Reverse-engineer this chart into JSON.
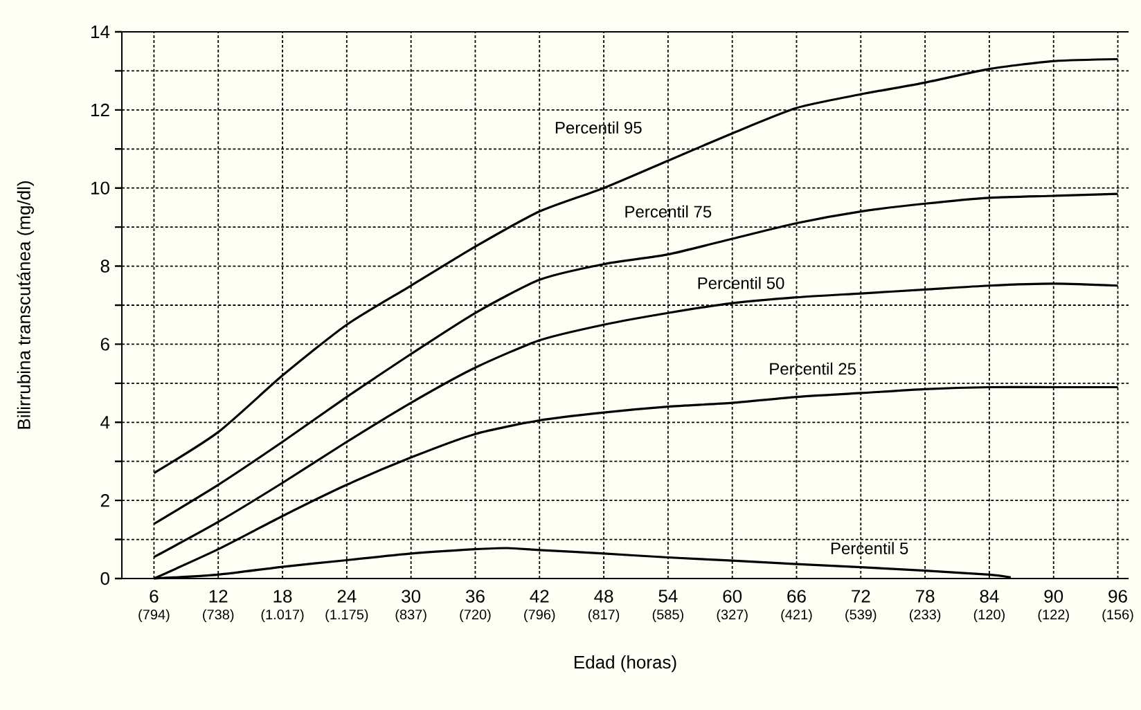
{
  "chart_data": {
    "type": "line",
    "xlabel": "Edad (horas)",
    "ylabel": "Bilirrubina transcutánea (mg/dl)",
    "x": [
      6,
      12,
      18,
      24,
      30,
      36,
      42,
      48,
      54,
      60,
      66,
      72,
      78,
      84,
      90,
      96
    ],
    "xlim": [
      3,
      97
    ],
    "ylim": [
      0,
      14
    ],
    "xticks": [
      6,
      12,
      18,
      24,
      30,
      36,
      42,
      48,
      54,
      60,
      66,
      72,
      78,
      84,
      90,
      96
    ],
    "annotations": [
      "(794)",
      "(738)",
      "(1.017)",
      "(1.175)",
      "(837)",
      "(720)",
      "(796)",
      "(817)",
      "(585)",
      "(327)",
      "(421)",
      "(539)",
      "(233)",
      "(120)",
      "(122)",
      "(156)"
    ],
    "yticks": [
      0,
      {
        "value": 1,
        "label": null
      },
      2,
      {
        "value": 3,
        "label": null
      },
      4,
      {
        "value": 5,
        "label": null
      },
      6,
      {
        "value": 7,
        "label": null
      },
      8,
      {
        "value": 9,
        "label": null
      },
      10,
      {
        "value": 11,
        "label": null
      },
      12,
      {
        "value": 13,
        "label": null
      },
      14
    ],
    "grid": true,
    "series": [
      {
        "name": "Percentil 95",
        "color": "#000000",
        "values": [
          2.7,
          3.75,
          5.2,
          6.5,
          7.5,
          8.5,
          9.4,
          10.0,
          10.7,
          11.4,
          12.05,
          12.4,
          12.7,
          13.05,
          13.25,
          13.3
        ]
      },
      {
        "name": "Percentil 75",
        "color": "#000000",
        "values": [
          1.4,
          2.4,
          3.5,
          4.65,
          5.75,
          6.8,
          7.65,
          8.05,
          8.3,
          8.7,
          9.1,
          9.4,
          9.6,
          9.75,
          9.8,
          9.85
        ]
      },
      {
        "name": "Percentil 50",
        "color": "#000000",
        "values": [
          0.55,
          1.45,
          2.45,
          3.5,
          4.5,
          5.4,
          6.1,
          6.5,
          6.8,
          7.05,
          7.2,
          7.3,
          7.4,
          7.5,
          7.55,
          7.5
        ]
      },
      {
        "name": "Percentil 25",
        "color": "#000000",
        "values": [
          0,
          0.75,
          1.6,
          2.4,
          3.1,
          3.7,
          4.05,
          4.25,
          4.4,
          4.5,
          4.65,
          4.75,
          4.85,
          4.9,
          4.9,
          4.9
        ]
      },
      {
        "name": "Percentil 5",
        "color": "#000000",
        "x": [
          6,
          12,
          18,
          24,
          30,
          36,
          39,
          42,
          48,
          54,
          60,
          66,
          72,
          78,
          84,
          86
        ],
        "values": [
          0,
          0.1,
          0.3,
          0.47,
          0.64,
          0.75,
          0.78,
          0.73,
          0.64,
          0.54,
          0.46,
          0.37,
          0.29,
          0.2,
          0.1,
          0.03
        ]
      }
    ]
  }
}
